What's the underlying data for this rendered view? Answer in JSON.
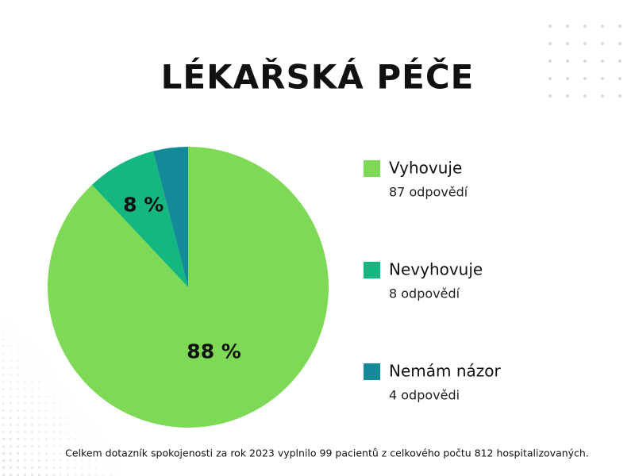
{
  "chart_data": {
    "type": "pie",
    "title": "LÉKAŘSKÁ PÉČE",
    "categories": [
      "Vyhovuje",
      "Nevyhovuje",
      "Nemám názor"
    ],
    "values": [
      88,
      8,
      4
    ],
    "value_labels": [
      "88 %",
      "8 %",
      null
    ],
    "colors": [
      "#7ed957",
      "#14b87e",
      "#138a98"
    ],
    "legend_notes": [
      "87 odpovědí",
      "8 odpovědí",
      "4 odpovědi"
    ],
    "footnote": "Celkem dotazník spokojenosti za rok  2023 vyplnilo 99 pacientů z celkového počtu 812 hospitalizovaných."
  }
}
